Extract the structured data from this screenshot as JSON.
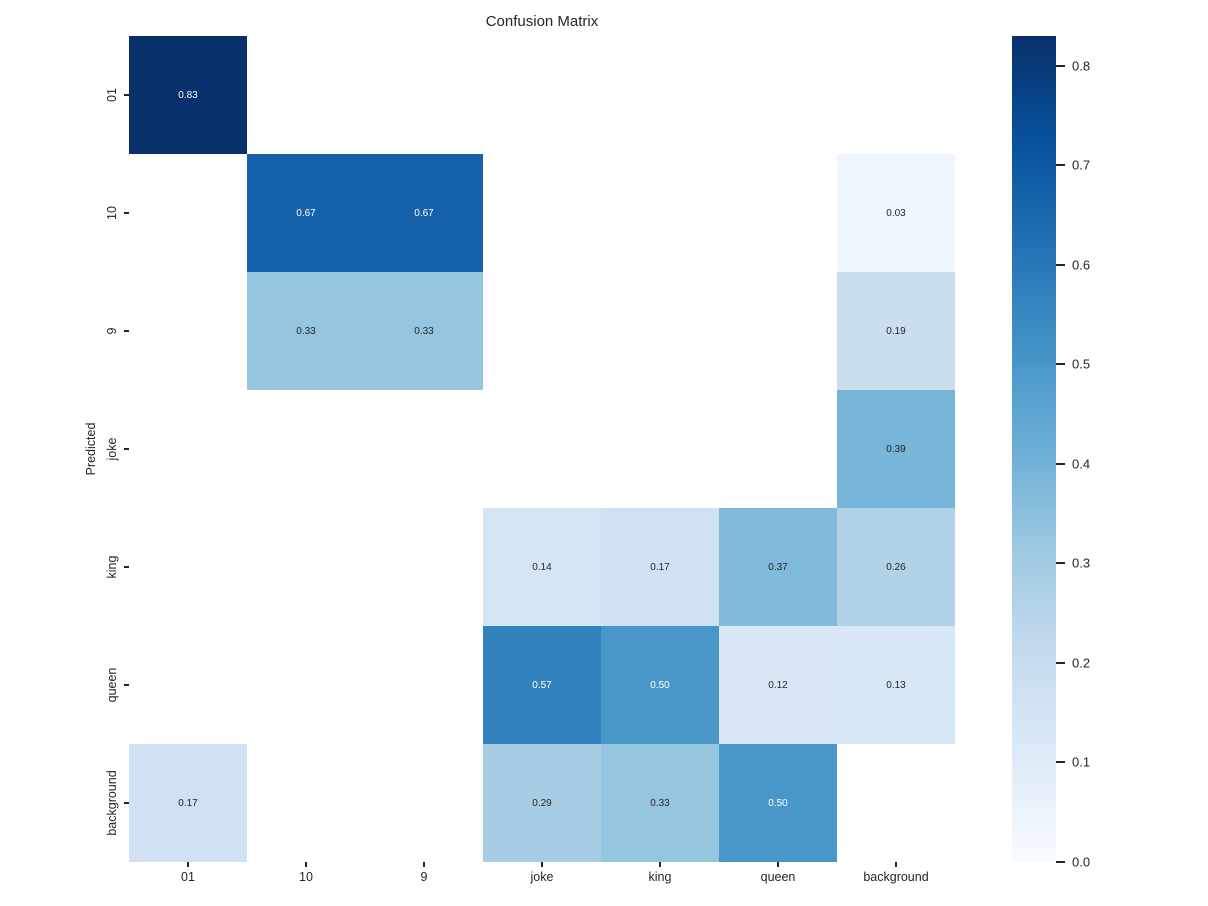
{
  "title": "Confusion Matrix",
  "chart_data": {
    "type": "heatmap",
    "title": "Confusion Matrix",
    "xlabel": "",
    "ylabel": "Predicted",
    "x_categories": [
      "01",
      "10",
      "9",
      "joke",
      "king",
      "queen",
      "background"
    ],
    "y_categories": [
      "01",
      "10",
      "9",
      "joke",
      "king",
      "queen",
      "background"
    ],
    "matrix": [
      [
        0.83,
        null,
        null,
        null,
        null,
        null,
        null
      ],
      [
        null,
        0.67,
        0.67,
        null,
        null,
        null,
        0.03
      ],
      [
        null,
        0.33,
        0.33,
        null,
        null,
        null,
        0.19
      ],
      [
        null,
        null,
        null,
        null,
        null,
        null,
        0.39
      ],
      [
        null,
        null,
        null,
        0.14,
        0.17,
        0.37,
        0.26
      ],
      [
        null,
        null,
        null,
        0.57,
        0.5,
        0.12,
        0.13
      ],
      [
        0.17,
        null,
        null,
        0.29,
        0.33,
        0.5,
        null
      ]
    ],
    "vmin": 0.0,
    "vmax": 0.83,
    "value_format": "two-decimals",
    "colormap": "Blues",
    "grid": false,
    "legend": "none",
    "colorbar": {
      "position": "right",
      "ticks": [
        0.0,
        0.1,
        0.2,
        0.3,
        0.4,
        0.5,
        0.6,
        0.7,
        0.8
      ]
    }
  },
  "colors": {
    "background": "#ffffff",
    "text": "#262626",
    "annotation_light": "#ffffff",
    "annotation_dark": "#262626",
    "colormap_anchors": [
      "#f7fbff",
      "#deebf7",
      "#c6dbef",
      "#9ecae1",
      "#6baed6",
      "#4292c6",
      "#2171b5",
      "#08519c",
      "#08306b"
    ]
  }
}
